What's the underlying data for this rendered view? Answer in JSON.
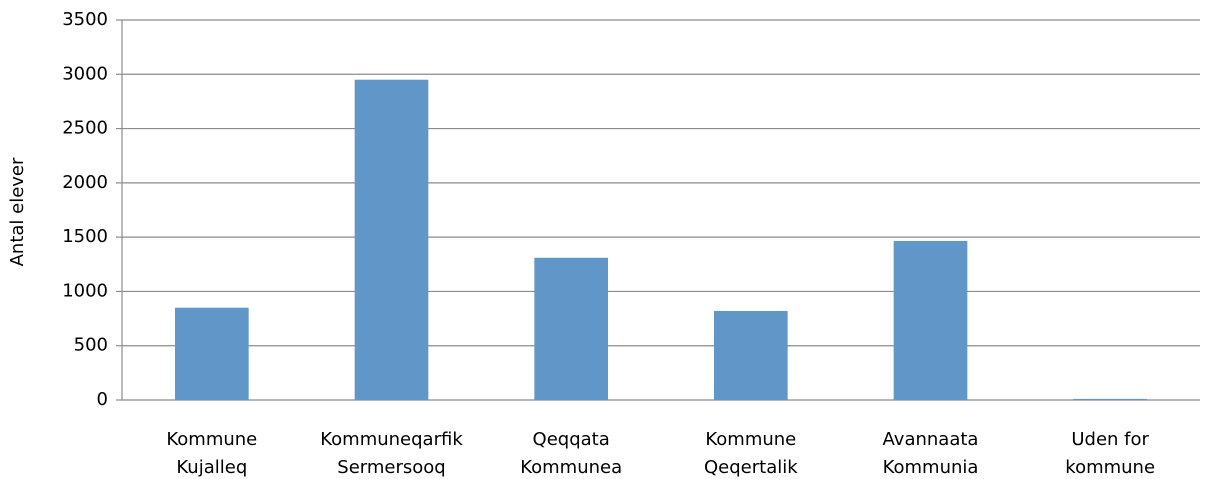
{
  "chart_data": {
    "type": "bar",
    "y_label": "Antal elever",
    "categories": [
      "Kommune Kujalleq",
      "Kommuneqarfik Sermersooq",
      "Qeqqata Kommunea",
      "Kommune Qeqertalik",
      "Avannaata Kommunia",
      "Uden for kommune"
    ],
    "values": [
      850,
      2950,
      1310,
      820,
      1465,
      10
    ],
    "color": "#6096c8",
    "ylim": [
      0,
      3500
    ],
    "yticks": [
      0,
      500,
      1000,
      1500,
      2000,
      2500,
      3000,
      3500
    ],
    "grid": true
  }
}
